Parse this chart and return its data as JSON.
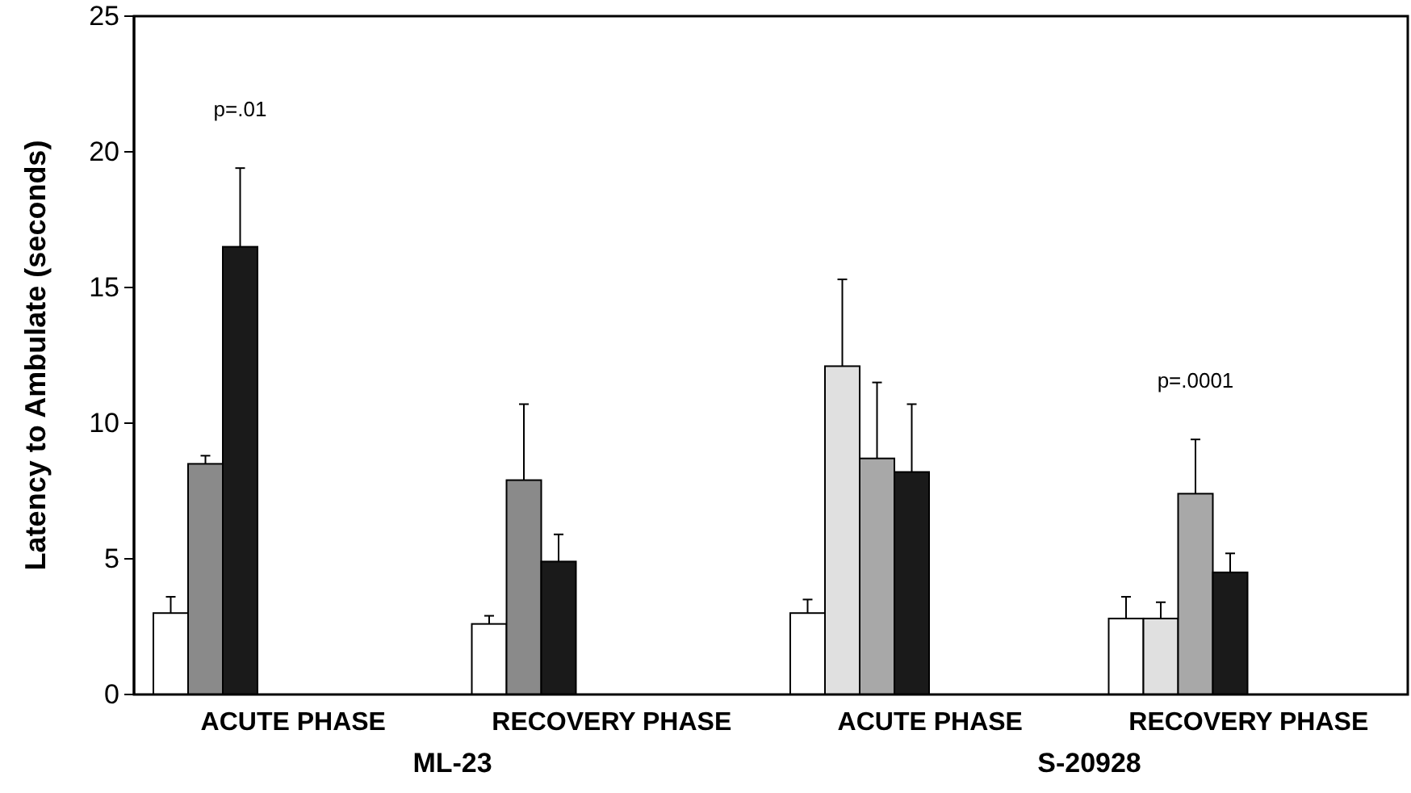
{
  "chart_data": {
    "type": "bar",
    "ylabel": "Latency to Ambulate (seconds)",
    "categories": [
      "ACUTE PHASE",
      "RECOVERY PHASE",
      "ACUTE PHASE",
      "RECOVERY PHASE"
    ],
    "series": [
      {
        "color": "#ffffff",
        "values": [
          3.0,
          2.6,
          3.0,
          2.8
        ],
        "errors": [
          [
            3.0,
            3.6
          ],
          [
            2.6,
            2.9
          ],
          [
            3.0,
            3.5
          ],
          [
            2.8,
            3.6
          ]
        ]
      },
      {
        "color": "#8a8a8a",
        "values": [
          8.5,
          7.9,
          null,
          null
        ],
        "errors": [
          [
            8.5,
            8.8
          ],
          [
            7.9,
            10.7
          ],
          null,
          null
        ]
      },
      {
        "color": "#e0e0e0",
        "values": [
          null,
          null,
          12.1,
          2.8
        ],
        "errors": [
          null,
          null,
          [
            12.1,
            15.3
          ],
          [
            2.8,
            3.4
          ]
        ]
      },
      {
        "color": "#a8a8a8",
        "values": [
          null,
          null,
          8.7,
          7.4
        ],
        "errors": [
          null,
          null,
          [
            8.7,
            11.5
          ],
          [
            7.4,
            9.4
          ]
        ]
      },
      {
        "color": "#1a1a1a",
        "values": [
          16.5,
          4.9,
          8.2,
          4.5
        ],
        "errors": [
          [
            16.5,
            19.4
          ],
          [
            4.9,
            5.9
          ],
          [
            8.2,
            10.7
          ],
          [
            4.5,
            5.2
          ]
        ]
      }
    ],
    "ylim": [
      0,
      25
    ],
    "yticks": [
      0,
      5,
      10,
      15,
      20,
      25
    ],
    "annotations": [
      "ML-23",
      "S-20928",
      "p=.01",
      "p=.0001"
    ]
  }
}
